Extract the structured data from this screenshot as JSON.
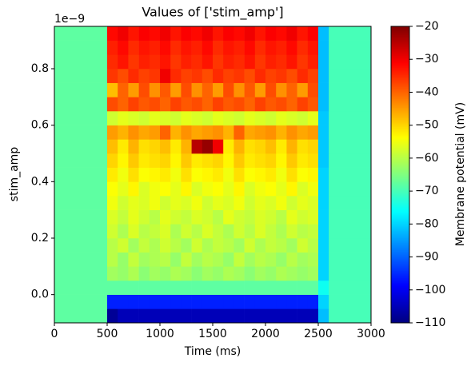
{
  "chart_data": {
    "type": "heatmap",
    "title": "Values of ['stim_amp']",
    "x_label": "Time (ms)",
    "y_label": "stim_amp",
    "y_offset_text": "1e−9",
    "colorbar_label": "Membrane potential (mV)",
    "colormap": "jet",
    "x_edges": [
      0,
      500,
      600,
      700,
      800,
      900,
      1000,
      1100,
      1200,
      1300,
      1400,
      1500,
      1600,
      1700,
      1800,
      1900,
      2000,
      2100,
      2200,
      2300,
      2400,
      2500,
      2600,
      3000
    ],
    "y_edges": [
      -0.1,
      -0.05,
      0,
      0.05,
      0.1,
      0.15,
      0.2,
      0.25,
      0.3,
      0.35,
      0.4,
      0.45,
      0.5,
      0.55,
      0.6,
      0.65,
      0.7,
      0.75,
      0.8,
      0.85,
      0.9,
      0.95
    ],
    "z": [
      [
        -68,
        -108,
        -105,
        -105,
        -105,
        -105,
        -105,
        -105,
        -105,
        -105,
        -105,
        -105,
        -105,
        -105,
        -105,
        -105,
        -105,
        -105,
        -105,
        -105,
        -105,
        -82,
        -70
      ],
      [
        -68,
        -96,
        -96,
        -96,
        -96,
        -96,
        -96,
        -96,
        -96,
        -96,
        -96,
        -96,
        -96,
        -96,
        -96,
        -96,
        -96,
        -96,
        -96,
        -96,
        -96,
        -80,
        -70
      ],
      [
        -68,
        -68,
        -68,
        -68,
        -68,
        -68,
        -68,
        -68,
        -68,
        -68,
        -68,
        -68,
        -68,
        -68,
        -68,
        -68,
        -68,
        -68,
        -68,
        -68,
        -68,
        -75,
        -70
      ],
      [
        -68,
        -62,
        -63,
        -61,
        -64,
        -62,
        -63,
        -61,
        -62,
        -64,
        -62,
        -63,
        -61,
        -62,
        -64,
        -62,
        -63,
        -61,
        -62,
        -63,
        -62,
        -80,
        -70
      ],
      [
        -68,
        -60,
        -63,
        -59,
        -62,
        -61,
        -60,
        -63,
        -59,
        -62,
        -60,
        -61,
        -63,
        -59,
        -62,
        -60,
        -61,
        -63,
        -60,
        -62,
        -61,
        -80,
        -70
      ],
      [
        -68,
        -60,
        -58,
        -62,
        -59,
        -61,
        -58,
        -60,
        -62,
        -58,
        -61,
        -59,
        -60,
        -62,
        -58,
        -61,
        -59,
        -60,
        -62,
        -58,
        -60,
        -80,
        -70
      ],
      [
        -68,
        -58,
        -61,
        -57,
        -60,
        -59,
        -57,
        -61,
        -58,
        -60,
        -57,
        -59,
        -61,
        -58,
        -60,
        -57,
        -59,
        -61,
        -58,
        -60,
        -59,
        -80,
        -70
      ],
      [
        -68,
        -57,
        -59,
        -56,
        -58,
        -60,
        -56,
        -58,
        -59,
        -57,
        -58,
        -60,
        -56,
        -58,
        -59,
        -57,
        -58,
        -60,
        -56,
        -58,
        -57,
        -80,
        -70
      ],
      [
        -68,
        -55,
        -58,
        -56,
        -57,
        -55,
        -58,
        -56,
        -57,
        -55,
        -58,
        -56,
        -57,
        -55,
        -58,
        -56,
        -57,
        -55,
        -58,
        -56,
        -57,
        -80,
        -70
      ],
      [
        -68,
        -54,
        -56,
        -53,
        -57,
        -55,
        -54,
        -56,
        -53,
        -57,
        -55,
        -54,
        -56,
        -53,
        -57,
        -55,
        -54,
        -56,
        -53,
        -57,
        -55,
        -80,
        -70
      ],
      [
        -68,
        -52,
        -55,
        -51,
        -54,
        -53,
        -52,
        -55,
        -51,
        -54,
        -53,
        -52,
        -55,
        -51,
        -54,
        -53,
        -52,
        -55,
        -51,
        -54,
        -53,
        -80,
        -70
      ],
      [
        -68,
        -50,
        -53,
        -49,
        -52,
        -51,
        -50,
        -53,
        -49,
        -52,
        -51,
        -50,
        -53,
        -49,
        -52,
        -51,
        -50,
        -53,
        -49,
        -52,
        -51,
        -81,
        -70
      ],
      [
        -68,
        -48,
        -52,
        -47,
        -51,
        -50,
        -48,
        -52,
        -47,
        -25,
        -22,
        -30,
        -52,
        -47,
        -51,
        -50,
        -48,
        -52,
        -47,
        -51,
        -50,
        -81,
        -70
      ],
      [
        -68,
        -45,
        -47,
        -44,
        -46,
        -45,
        -40,
        -47,
        -44,
        -46,
        -45,
        -44,
        -47,
        -40,
        -46,
        -45,
        -44,
        -47,
        -44,
        -46,
        -45,
        -81,
        -70
      ],
      [
        -68,
        -58,
        -56,
        -57,
        -58,
        -56,
        -57,
        -58,
        -56,
        -57,
        -58,
        -56,
        -57,
        -58,
        -56,
        -57,
        -58,
        -56,
        -57,
        -58,
        -56,
        -81,
        -70
      ],
      [
        -68,
        -38,
        -40,
        -37,
        -39,
        -38,
        -40,
        -37,
        -39,
        -38,
        -40,
        -37,
        -39,
        -38,
        -40,
        -37,
        -39,
        -38,
        -40,
        -37,
        -39,
        -82,
        -70
      ],
      [
        -68,
        -48,
        -40,
        -45,
        -38,
        -44,
        -39,
        -45,
        -38,
        -44,
        -40,
        -45,
        -38,
        -44,
        -39,
        -45,
        -38,
        -44,
        -40,
        -45,
        -38,
        -82,
        -70
      ],
      [
        -68,
        -36,
        -38,
        -35,
        -37,
        -36,
        -30,
        -35,
        -37,
        -36,
        -38,
        -35,
        -37,
        -36,
        -38,
        -35,
        -37,
        -36,
        -38,
        -35,
        -37,
        -82,
        -70
      ],
      [
        -68,
        -35,
        -33,
        -36,
        -34,
        -35,
        -33,
        -36,
        -34,
        -35,
        -33,
        -36,
        -34,
        -35,
        -33,
        -36,
        -34,
        -35,
        -33,
        -36,
        -34,
        -82,
        -70
      ],
      [
        -68,
        -34,
        -32,
        -35,
        -33,
        -34,
        -32,
        -35,
        -33,
        -34,
        -32,
        -35,
        -33,
        -34,
        -32,
        -35,
        -33,
        -34,
        -32,
        -35,
        -33,
        -82,
        -70
      ],
      [
        -68,
        -32,
        -30,
        -33,
        -31,
        -32,
        -30,
        -33,
        -31,
        -32,
        -30,
        -33,
        -31,
        -32,
        -30,
        -33,
        -31,
        -32,
        -30,
        -33,
        -31,
        -82,
        -70
      ]
    ],
    "xlim": [
      0,
      3000
    ],
    "xticks": [
      0,
      500,
      1000,
      1500,
      2000,
      2500,
      3000
    ],
    "ylim": [
      -0.1,
      0.95
    ],
    "yticks": [
      {
        "value": 0,
        "label": "0.0"
      },
      0.2,
      0.4,
      0.6,
      0.8
    ],
    "zlim": [
      -110,
      -20
    ],
    "zticks": [
      {
        "value": -110,
        "label": "−110"
      },
      {
        "value": -100,
        "label": "−100"
      },
      {
        "value": -90,
        "label": "−90"
      },
      {
        "value": -80,
        "label": "−80"
      },
      {
        "value": -70,
        "label": "−70"
      },
      {
        "value": -60,
        "label": "−60"
      },
      {
        "value": -50,
        "label": "−50"
      },
      {
        "value": -40,
        "label": "−40"
      },
      {
        "value": -30,
        "label": "−30"
      },
      {
        "value": -20,
        "label": "−20"
      }
    ]
  }
}
